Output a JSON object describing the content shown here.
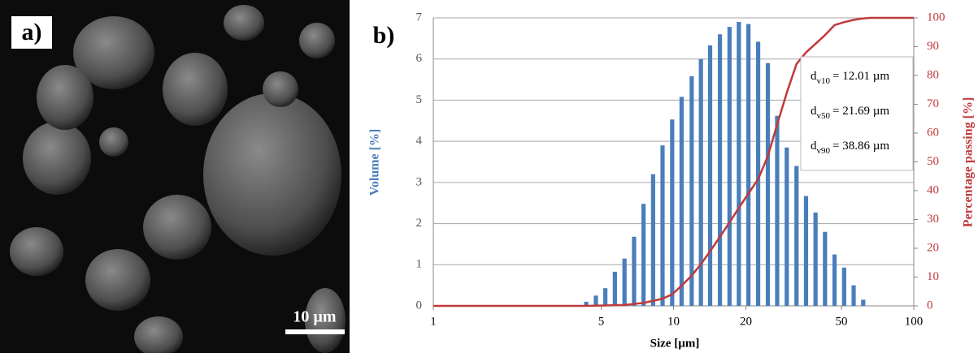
{
  "panel_a": {
    "label": "a)",
    "scale_bar": "10 µm"
  },
  "chart_data": {
    "type": "bar_line",
    "panel_label": "b)",
    "xlabel": "Size [µm]",
    "ylabel": "Volume [%]",
    "y2label": "Percentage passing [%]",
    "xscale": "log",
    "xlim": [
      1,
      100
    ],
    "xticks": [
      1,
      5,
      10,
      20,
      50,
      100
    ],
    "ylim": [
      0,
      7
    ],
    "yticks": [
      0,
      1,
      2,
      3,
      4,
      5,
      6,
      7
    ],
    "y2lim": [
      0,
      100
    ],
    "y2ticks": [
      0,
      10,
      20,
      30,
      40,
      50,
      60,
      70,
      80,
      90,
      100
    ],
    "grid": true,
    "series": [
      {
        "type": "bar",
        "color": "#4a7ebb",
        "x": [
          4.33,
          4.75,
          5.2,
          5.7,
          6.25,
          6.85,
          7.5,
          8.22,
          9.0,
          9.87,
          10.8,
          11.9,
          13.0,
          14.2,
          15.6,
          17.1,
          18.7,
          20.5,
          22.5,
          24.7,
          27.0,
          29.6,
          32.5,
          35.6,
          39.0,
          42.7,
          46.8,
          51.3,
          56.2,
          61.6
        ],
        "values": [
          0.1,
          0.25,
          0.43,
          0.83,
          1.15,
          1.68,
          2.48,
          3.2,
          3.9,
          4.53,
          5.08,
          5.58,
          6.0,
          6.33,
          6.6,
          6.78,
          6.9,
          6.85,
          6.42,
          5.9,
          4.62,
          3.85,
          3.4,
          2.67,
          2.27,
          1.8,
          1.25,
          0.93,
          0.5,
          0.15
        ]
      },
      {
        "type": "line",
        "axis": "y2",
        "color": "#c0393b",
        "x": [
          1,
          4.33,
          6.25,
          7.5,
          9.0,
          9.87,
          10.8,
          11.9,
          13.0,
          14.2,
          15.6,
          17.1,
          18.7,
          20.5,
          22.5,
          24.7,
          27.0,
          29.6,
          32.5,
          35.6,
          39.0,
          42.7,
          46.8,
          51.3,
          56.2,
          61.6,
          66,
          100
        ],
        "values": [
          0,
          0,
          0.3,
          1,
          2.5,
          4,
          7,
          10.5,
          14.5,
          19,
          24,
          29,
          34,
          39,
          44,
          52,
          63,
          74,
          84,
          88,
          91,
          94,
          97.5,
          98.5,
          99.3,
          99.8,
          100,
          100
        ]
      }
    ],
    "annotations": [
      {
        "symbol": "d",
        "sub": "v10",
        "text": "= 12.01 µm"
      },
      {
        "symbol": "d",
        "sub": "v50",
        "text": "= 21.69 µm"
      },
      {
        "symbol": "d",
        "sub": "v90",
        "text": "= 38.86 µm"
      }
    ]
  }
}
